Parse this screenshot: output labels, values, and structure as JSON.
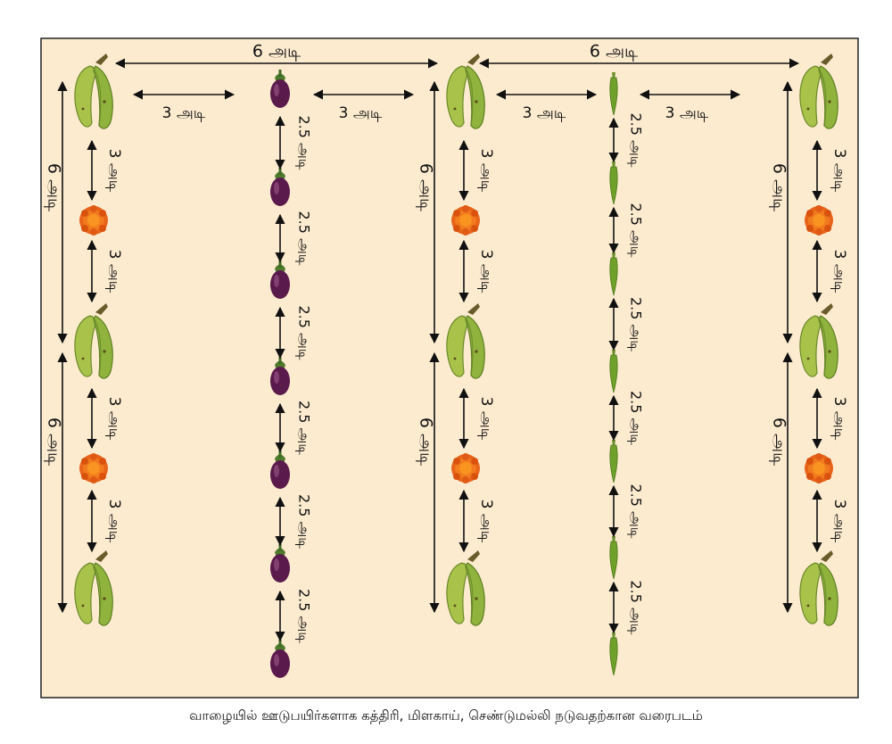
{
  "labels": {
    "unit": "அடி",
    "spacing_6": "6 அடி",
    "spacing_3": "3 அடி",
    "spacing_2_5": "2.5 அடி"
  },
  "plants": {
    "banana": "banana",
    "brinjal": "brinjal",
    "chilli": "chilli",
    "marigold": "marigold"
  },
  "colors": {
    "background": "#fdebcf",
    "border": "#222222",
    "arrow": "#111111"
  },
  "caption": "வாழையில் ஊடுபயிர்களாக கத்திரி, மிளகாய், செண்டுமல்லி நடுவதற்கான வரைபடம்"
}
